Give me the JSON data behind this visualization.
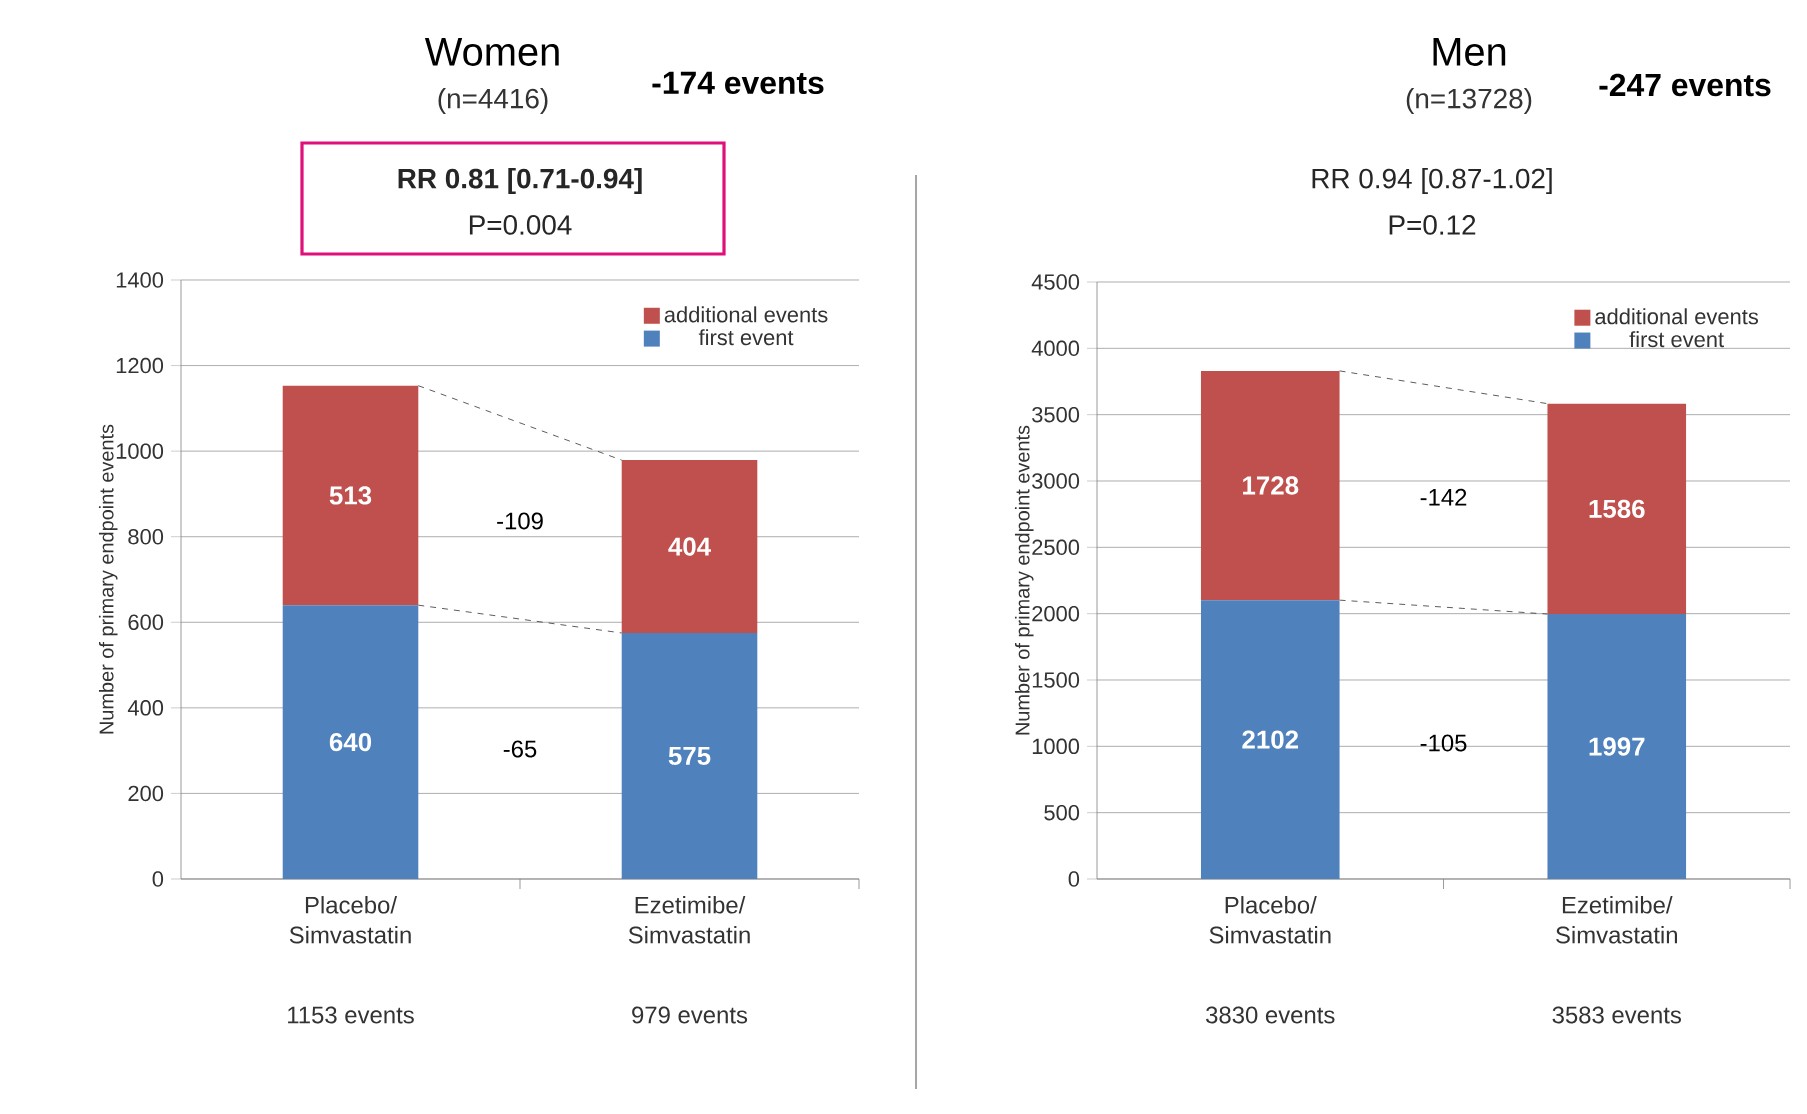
{
  "chart_data": [
    {
      "type": "bar",
      "stacked": true,
      "title": "Women",
      "subtitle": "(n=4416)",
      "ylabel": "Number of primary endpoint events",
      "categories": [
        "Placebo/ Simvastatin",
        "Ezetimibe/ Simvastatin"
      ],
      "series": [
        {
          "name": "first event",
          "color": "#4f81bd",
          "values": [
            640,
            575
          ]
        },
        {
          "name": "additional events",
          "color": "#c0504d",
          "values": [
            513,
            404
          ]
        }
      ],
      "data_labels": true,
      "ylim": [
        0,
        1400
      ],
      "yticks": [
        0,
        200,
        400,
        600,
        800,
        1000,
        1200,
        1400
      ],
      "grid": "y",
      "legend": "top right",
      "annotations": [
        "-174 events",
        "RR 0.81 [0.71-0.94]",
        "P=0.004",
        "-109",
        "-65",
        "1153 events",
        "979 events"
      ]
    },
    {
      "type": "bar",
      "stacked": true,
      "title": "Men",
      "subtitle": "(n=13728)",
      "ylabel": "Number of primary endpoint events",
      "categories": [
        "Placebo/ Simvastatin",
        "Ezetimibe/ Simvastatin"
      ],
      "series": [
        {
          "name": "first event",
          "color": "#4f81bd",
          "values": [
            2102,
            1997
          ]
        },
        {
          "name": "additional events",
          "color": "#c0504d",
          "values": [
            1728,
            1586
          ]
        }
      ],
      "data_labels": true,
      "ylim": [
        0,
        4500
      ],
      "yticks": [
        0,
        500,
        1000,
        1500,
        2000,
        2500,
        3000,
        3500,
        4000,
        4500
      ],
      "grid": "y",
      "legend": "top right",
      "annotations": [
        "-247 events",
        "RR 0.94 [0.87-1.02]",
        "P=0.12",
        "-142",
        "-105",
        "3830 events",
        "3583 events"
      ]
    }
  ]
}
